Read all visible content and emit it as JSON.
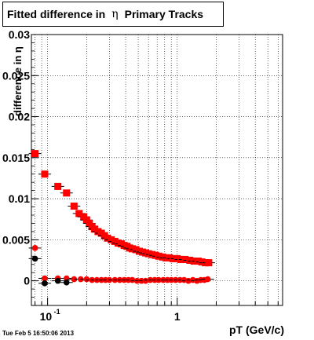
{
  "title": {
    "pre": "Fitted difference in",
    "symbol": "η",
    "post": "Primary Tracks"
  },
  "footer": "Tue Feb  5 16:50:06 2013",
  "chart_data": {
    "type": "scatter",
    "title": "Fitted difference in η Primary Tracks",
    "xlabel": "pT (GeV/c)",
    "ylabel": "difference in η",
    "xscale": "log",
    "xlim": [
      0.075,
      6.5
    ],
    "ylim": [
      -0.003,
      0.03
    ],
    "grid": true,
    "yticks": [
      "0",
      "0.005",
      "0.01",
      "0.015",
      "0.02",
      "0.025",
      "0.03"
    ],
    "xticks": [
      "10^-1",
      "1"
    ],
    "colors": {
      "red": "#ff0000",
      "black": "#000000"
    },
    "series": [
      {
        "marker": "square",
        "color": "#ff0000",
        "x": [
          0.08,
          0.095,
          0.12,
          0.14,
          0.16,
          0.175,
          0.19,
          0.2,
          0.21,
          0.22,
          0.23,
          0.245,
          0.26,
          0.275,
          0.29,
          0.31,
          0.33,
          0.35,
          0.37,
          0.39,
          0.41,
          0.43,
          0.45,
          0.48,
          0.51,
          0.54,
          0.57,
          0.6,
          0.64,
          0.68,
          0.72,
          0.77,
          0.82,
          0.87,
          0.93,
          1.0,
          1.07,
          1.15,
          1.25,
          1.35,
          1.45,
          1.55,
          1.65,
          1.75
        ],
        "y": [
          0.0155,
          0.013,
          0.0115,
          0.0107,
          0.0091,
          0.0082,
          0.0078,
          0.0074,
          0.007,
          0.0066,
          0.0063,
          0.006,
          0.0058,
          0.0055,
          0.0052,
          0.005,
          0.0048,
          0.0046,
          0.0045,
          0.0043,
          0.0042,
          0.004,
          0.0039,
          0.0038,
          0.0036,
          0.0035,
          0.0034,
          0.0033,
          0.0032,
          0.0031,
          0.003,
          0.0029,
          0.0028,
          0.0028,
          0.0027,
          0.0027,
          0.0026,
          0.0026,
          0.0025,
          0.0024,
          0.0024,
          0.0023,
          0.0022,
          0.0022
        ]
      },
      {
        "marker": "circle",
        "color": "#ff0000",
        "x": [
          0.08,
          0.095,
          0.12,
          0.14,
          0.16,
          0.18,
          0.2,
          0.22,
          0.24,
          0.26,
          0.28,
          0.3,
          0.33,
          0.36,
          0.39,
          0.42,
          0.45,
          0.49,
          0.53,
          0.57,
          0.62,
          0.67,
          0.72,
          0.78,
          0.84,
          0.9,
          0.97,
          1.05,
          1.13,
          1.22,
          1.32,
          1.42,
          1.52,
          1.62,
          1.72
        ],
        "y": [
          0.004,
          0.0003,
          0.0003,
          0.0003,
          0.0002,
          0.0002,
          0.0002,
          0.0001,
          0.0001,
          0.0001,
          0.0001,
          0.0001,
          0.0001,
          0.0001,
          0.0001,
          0.0001,
          0.0001,
          0.0,
          0.0,
          0.0,
          0.0001,
          0.0001,
          0.0001,
          0.0001,
          0.0001,
          0.0001,
          0.0001,
          0.0001,
          0.0001,
          0.0,
          0.0001,
          0.0,
          0.0001,
          0.0001,
          0.0002
        ]
      },
      {
        "marker": "circle",
        "color": "#000000",
        "x": [
          0.08,
          0.095,
          0.12,
          0.14
        ],
        "y": [
          0.0027,
          -0.0003,
          0.0,
          -0.0002
        ]
      }
    ]
  }
}
